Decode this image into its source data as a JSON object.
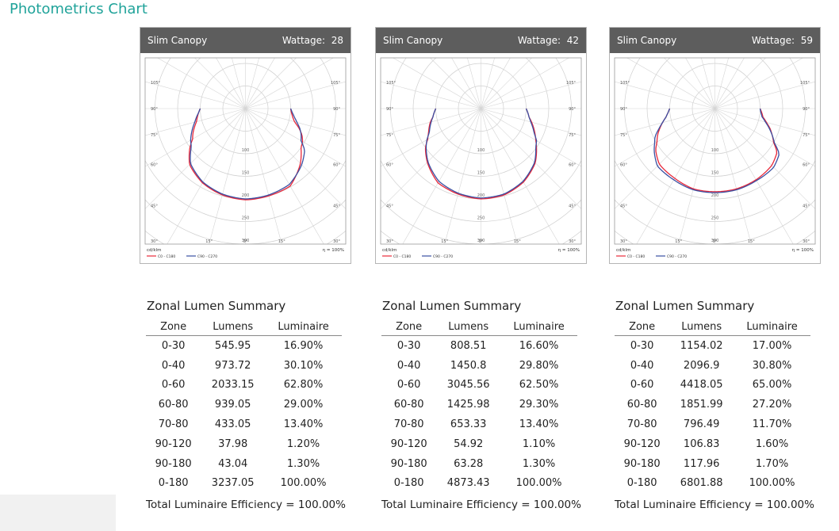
{
  "page": {
    "title": "Photometrics Chart"
  },
  "chart_common": {
    "unit_label": "cd/klm",
    "efficiency_label": "η =  100%",
    "angle_labels": [
      "105°",
      "90°",
      "75°",
      "60°",
      "45°",
      "30°",
      "15°",
      "0°",
      "15°",
      "30°",
      "45°",
      "60°",
      "75°",
      "90°",
      "105°"
    ],
    "radial_labels": [
      "100",
      "150",
      "200",
      "250",
      "300"
    ],
    "legend": [
      {
        "name": "C0 - C180",
        "color": "#e8283a"
      },
      {
        "name": "C90 - C270",
        "color": "#3a4fa2"
      }
    ]
  },
  "chart_data": [
    {
      "type": "polar",
      "product": "Slim Canopy",
      "wattage_label": "Wattage:",
      "wattage": "28",
      "rlim": [
        0,
        300
      ],
      "series": [
        {
          "name": "C0 - C180",
          "angles": [
            0,
            15,
            30,
            45,
            55,
            60,
            65,
            70,
            75,
            80,
            85,
            90
          ],
          "left": [
            202,
            198,
            190,
            175,
            150,
            135,
            128,
            120,
            112,
            108,
            104,
            100
          ],
          "right": [
            202,
            200,
            198,
            172,
            150,
            146,
            138,
            126,
            112,
            106,
            102,
            100
          ]
        },
        {
          "name": "C90 - C270",
          "angles": [
            0,
            15,
            30,
            45,
            55,
            60,
            65,
            70,
            75,
            80,
            85,
            90
          ],
          "left": [
            200,
            196,
            188,
            172,
            146,
            140,
            132,
            124,
            116,
            110,
            104,
            100
          ],
          "right": [
            200,
            198,
            194,
            176,
            160,
            142,
            136,
            128,
            118,
            110,
            104,
            100
          ]
        }
      ]
    },
    {
      "type": "polar",
      "product": "Slim Canopy",
      "wattage_label": "Wattage:",
      "wattage": "42",
      "rlim": [
        0,
        300
      ],
      "series": [
        {
          "name": "C0 - C180",
          "angles": [
            0,
            15,
            30,
            45,
            55,
            60,
            65,
            70,
            75,
            80,
            85,
            90
          ],
          "left": [
            200,
            196,
            190,
            168,
            150,
            136,
            128,
            122,
            116,
            108,
            104,
            100
          ],
          "right": [
            200,
            198,
            188,
            170,
            150,
            140,
            132,
            124,
            116,
            108,
            104,
            100
          ]
        },
        {
          "name": "C90 - C270",
          "angles": [
            0,
            15,
            30,
            45,
            55,
            60,
            65,
            70,
            75,
            80,
            85,
            90
          ],
          "left": [
            198,
            194,
            186,
            166,
            148,
            138,
            126,
            120,
            114,
            108,
            104,
            100
          ],
          "right": [
            198,
            196,
            186,
            168,
            148,
            142,
            130,
            122,
            114,
            108,
            104,
            100
          ]
        }
      ]
    },
    {
      "type": "polar",
      "product": "Slim Canopy",
      "wattage_label": "Wattage:",
      "wattage": "59",
      "rlim": [
        0,
        300
      ],
      "series": [
        {
          "name": "C0 - C180",
          "angles": [
            0,
            15,
            30,
            45,
            55,
            60,
            65,
            70,
            75,
            80,
            85,
            90
          ],
          "left": [
            184,
            184,
            178,
            174,
            160,
            148,
            140,
            130,
            120,
            110,
            104,
            100
          ],
          "right": [
            184,
            184,
            182,
            178,
            168,
            150,
            140,
            130,
            118,
            108,
            104,
            100
          ]
        },
        {
          "name": "C90 - C270",
          "angles": [
            0,
            15,
            30,
            45,
            55,
            60,
            65,
            70,
            75,
            80,
            85,
            90
          ],
          "left": [
            186,
            186,
            182,
            180,
            164,
            154,
            146,
            132,
            120,
            110,
            104,
            100
          ],
          "right": [
            186,
            186,
            184,
            184,
            174,
            152,
            140,
            128,
            116,
            106,
            102,
            100
          ]
        }
      ]
    }
  ],
  "summaries": [
    {
      "title": "Zonal Lumen Summary",
      "headers": [
        "Zone",
        "Lumens",
        "Luminaire"
      ],
      "rows": [
        [
          "0-30",
          "545.95",
          "16.90%"
        ],
        [
          "0-40",
          "973.72",
          "30.10%"
        ],
        [
          "0-60",
          "2033.15",
          "62.80%"
        ],
        [
          "60-80",
          "939.05",
          "29.00%"
        ],
        [
          "70-80",
          "433.05",
          "13.40%"
        ],
        [
          "90-120",
          "37.98",
          "1.20%"
        ],
        [
          "90-180",
          "43.04",
          "1.30%"
        ],
        [
          "0-180",
          "3237.05",
          "100.00%"
        ]
      ],
      "efficiency": "Total Luminaire Efficiency = 100.00%"
    },
    {
      "title": "Zonal Lumen Summary",
      "headers": [
        "Zone",
        "Lumens",
        "Luminaire"
      ],
      "rows": [
        [
          "0-30",
          "808.51",
          "16.60%"
        ],
        [
          "0-40",
          "1450.8",
          "29.80%"
        ],
        [
          "0-60",
          "3045.56",
          "62.50%"
        ],
        [
          "60-80",
          "1425.98",
          "29.30%"
        ],
        [
          "70-80",
          "653.33",
          "13.40%"
        ],
        [
          "90-120",
          "54.92",
          "1.10%"
        ],
        [
          "90-180",
          "63.28",
          "1.30%"
        ],
        [
          "0-180",
          "4873.43",
          "100.00%"
        ]
      ],
      "efficiency": "Total Luminaire Efficiency = 100.00%"
    },
    {
      "title": "Zonal Lumen Summary",
      "headers": [
        "Zone",
        "Lumens",
        "Luminaire"
      ],
      "rows": [
        [
          "0-30",
          "1154.02",
          "17.00%"
        ],
        [
          "0-40",
          "2096.9",
          "30.80%"
        ],
        [
          "0-60",
          "4418.05",
          "65.00%"
        ],
        [
          "60-80",
          "1851.99",
          "27.20%"
        ],
        [
          "70-80",
          "796.49",
          "11.70%"
        ],
        [
          "90-120",
          "106.83",
          "1.60%"
        ],
        [
          "90-180",
          "117.96",
          "1.70%"
        ],
        [
          "0-180",
          "6801.88",
          "100.00%"
        ]
      ],
      "efficiency": "Total Luminaire Efficiency = 100.00%"
    }
  ]
}
